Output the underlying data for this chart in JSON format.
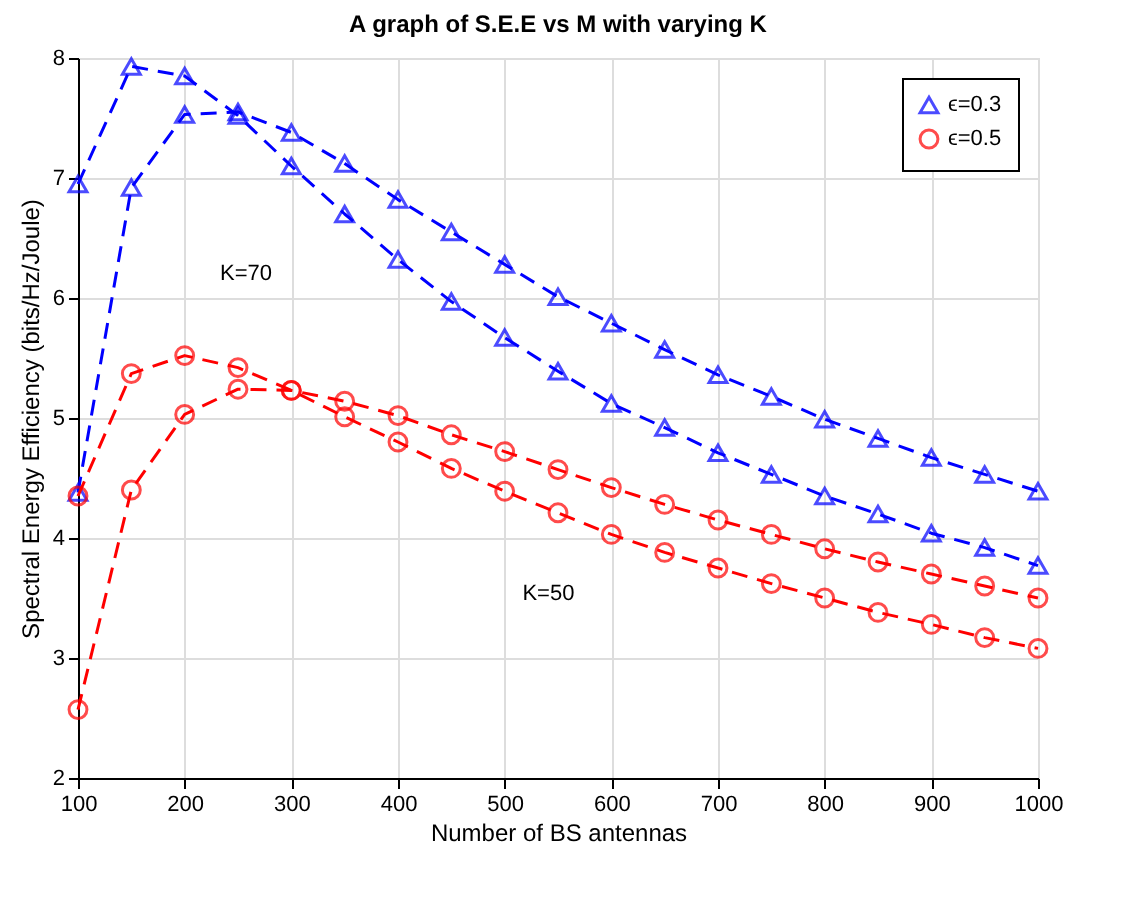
{
  "chart_data": {
    "type": "line",
    "title": "A graph of S.E.E vs M with varying K",
    "xlabel": "Number of BS antennas",
    "ylabel": "Spectral Energy Efficiency (bits/Hz/Joule)",
    "x": [
      100,
      150,
      200,
      250,
      300,
      350,
      400,
      450,
      500,
      550,
      600,
      650,
      700,
      750,
      800,
      850,
      900,
      950,
      1000
    ],
    "series": [
      {
        "name": "ϵ=0.3",
        "color": "#0000ff",
        "marker": "triangle",
        "values": [
          6.95,
          7.93,
          7.85,
          7.52,
          7.1,
          6.7,
          6.32,
          5.97,
          5.67,
          5.39,
          5.12,
          4.92,
          4.71,
          4.53,
          4.35,
          4.2,
          4.04,
          3.92,
          3.77
        ]
      },
      {
        "color": "#0000ff",
        "marker": "triangle",
        "values": [
          4.38,
          6.92,
          7.53,
          7.55,
          7.38,
          7.12,
          6.82,
          6.55,
          6.28,
          6.01,
          5.79,
          5.57,
          5.36,
          5.18,
          4.99,
          4.83,
          4.67,
          4.53,
          4.39
        ]
      },
      {
        "name": "ϵ=0.5",
        "color": "#ff0000",
        "marker": "circle",
        "values": [
          4.35,
          5.37,
          5.52,
          5.42,
          5.23,
          5.01,
          4.8,
          4.58,
          4.39,
          4.21,
          4.03,
          3.88,
          3.75,
          3.62,
          3.5,
          3.38,
          3.28,
          3.17,
          3.08
        ]
      },
      {
        "color": "#ff0000",
        "marker": "circle",
        "values": [
          2.57,
          4.4,
          5.03,
          5.24,
          5.23,
          5.14,
          5.02,
          4.86,
          4.72,
          4.57,
          4.42,
          4.28,
          4.15,
          4.03,
          3.91,
          3.8,
          3.7,
          3.6,
          3.5
        ]
      }
    ],
    "xlim": [
      100,
      1000
    ],
    "xticks": [
      100,
      200,
      300,
      400,
      500,
      600,
      700,
      800,
      900,
      1000
    ],
    "ylim": [
      2,
      8
    ],
    "yticks": [
      2,
      3,
      4,
      5,
      6,
      7,
      8
    ],
    "annotations": [
      "K=70",
      "K=50"
    ],
    "grid": true,
    "legend": "top right",
    "line_style": "dashed"
  }
}
